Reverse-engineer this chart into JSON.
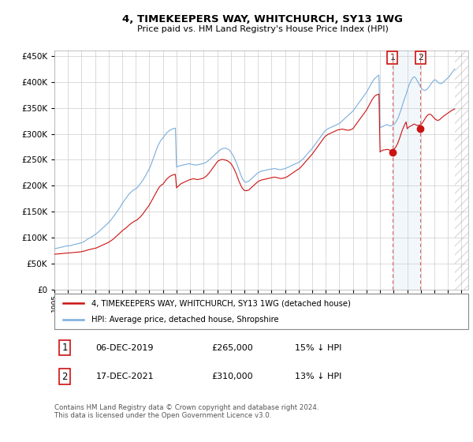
{
  "title": "4, TIMEKEEPERS WAY, WHITCHURCH, SY13 1WG",
  "subtitle": "Price paid vs. HM Land Registry's House Price Index (HPI)",
  "ytick_values": [
    0,
    50000,
    100000,
    150000,
    200000,
    250000,
    300000,
    350000,
    400000,
    450000
  ],
  "ylim": [
    0,
    460000
  ],
  "xlim_start": 1995.0,
  "xlim_end": 2025.5,
  "hpi_color": "#7aaddc",
  "price_color": "#cc1111",
  "sale1_x": 2019.92,
  "sale1_price": 265000,
  "sale2_x": 2021.96,
  "sale2_price": 310000,
  "span_color": "#cce0f0",
  "vline_color": "#dd6666",
  "legend_line1": "4, TIMEKEEPERS WAY, WHITCHURCH, SY13 1WG (detached house)",
  "legend_line2": "HPI: Average price, detached house, Shropshire",
  "footer": "Contains HM Land Registry data © Crown copyright and database right 2024.\nThis data is licensed under the Open Government Licence v3.0.",
  "table_row1": [
    "1",
    "06-DEC-2019",
    "£265,000",
    "15% ↓ HPI"
  ],
  "table_row2": [
    "2",
    "17-DEC-2021",
    "£310,000",
    "13% ↓ HPI"
  ],
  "hpi_x": [
    1995.0,
    1995.083,
    1995.167,
    1995.25,
    1995.333,
    1995.417,
    1995.5,
    1995.583,
    1995.667,
    1995.75,
    1995.833,
    1995.917,
    1996.0,
    1996.083,
    1996.167,
    1996.25,
    1996.333,
    1996.417,
    1996.5,
    1996.583,
    1996.667,
    1996.75,
    1996.833,
    1996.917,
    1997.0,
    1997.083,
    1997.167,
    1997.25,
    1997.333,
    1997.417,
    1997.5,
    1997.583,
    1997.667,
    1997.75,
    1997.833,
    1997.917,
    1998.0,
    1998.083,
    1998.167,
    1998.25,
    1998.333,
    1998.417,
    1998.5,
    1998.583,
    1998.667,
    1998.75,
    1998.833,
    1998.917,
    1999.0,
    1999.083,
    1999.167,
    1999.25,
    1999.333,
    1999.417,
    1999.5,
    1999.583,
    1999.667,
    1999.75,
    1999.833,
    1999.917,
    2000.0,
    2000.083,
    2000.167,
    2000.25,
    2000.333,
    2000.417,
    2000.5,
    2000.583,
    2000.667,
    2000.75,
    2000.833,
    2000.917,
    2001.0,
    2001.083,
    2001.167,
    2001.25,
    2001.333,
    2001.417,
    2001.5,
    2001.583,
    2001.667,
    2001.75,
    2001.833,
    2001.917,
    2002.0,
    2002.083,
    2002.167,
    2002.25,
    2002.333,
    2002.417,
    2002.5,
    2002.583,
    2002.667,
    2002.75,
    2002.833,
    2002.917,
    2003.0,
    2003.083,
    2003.167,
    2003.25,
    2003.333,
    2003.417,
    2003.5,
    2003.583,
    2003.667,
    2003.75,
    2003.833,
    2003.917,
    2004.0,
    2004.083,
    2004.167,
    2004.25,
    2004.333,
    2004.417,
    2004.5,
    2004.583,
    2004.667,
    2004.75,
    2004.833,
    2004.917,
    2005.0,
    2005.083,
    2005.167,
    2005.25,
    2005.333,
    2005.417,
    2005.5,
    2005.583,
    2005.667,
    2005.75,
    2005.833,
    2005.917,
    2006.0,
    2006.083,
    2006.167,
    2006.25,
    2006.333,
    2006.417,
    2006.5,
    2006.583,
    2006.667,
    2006.75,
    2006.833,
    2006.917,
    2007.0,
    2007.083,
    2007.167,
    2007.25,
    2007.333,
    2007.417,
    2007.5,
    2007.583,
    2007.667,
    2007.75,
    2007.833,
    2007.917,
    2008.0,
    2008.083,
    2008.167,
    2008.25,
    2008.333,
    2008.417,
    2008.5,
    2008.583,
    2008.667,
    2008.75,
    2008.833,
    2008.917,
    2009.0,
    2009.083,
    2009.167,
    2009.25,
    2009.333,
    2009.417,
    2009.5,
    2009.583,
    2009.667,
    2009.75,
    2009.833,
    2009.917,
    2010.0,
    2010.083,
    2010.167,
    2010.25,
    2010.333,
    2010.417,
    2010.5,
    2010.583,
    2010.667,
    2010.75,
    2010.833,
    2010.917,
    2011.0,
    2011.083,
    2011.167,
    2011.25,
    2011.333,
    2011.417,
    2011.5,
    2011.583,
    2011.667,
    2011.75,
    2011.833,
    2011.917,
    2012.0,
    2012.083,
    2012.167,
    2012.25,
    2012.333,
    2012.417,
    2012.5,
    2012.583,
    2012.667,
    2012.75,
    2012.833,
    2012.917,
    2013.0,
    2013.083,
    2013.167,
    2013.25,
    2013.333,
    2013.417,
    2013.5,
    2013.583,
    2013.667,
    2013.75,
    2013.833,
    2013.917,
    2014.0,
    2014.083,
    2014.167,
    2014.25,
    2014.333,
    2014.417,
    2014.5,
    2014.583,
    2014.667,
    2014.75,
    2014.833,
    2014.917,
    2015.0,
    2015.083,
    2015.167,
    2015.25,
    2015.333,
    2015.417,
    2015.5,
    2015.583,
    2015.667,
    2015.75,
    2015.833,
    2015.917,
    2016.0,
    2016.083,
    2016.167,
    2016.25,
    2016.333,
    2016.417,
    2016.5,
    2016.583,
    2016.667,
    2016.75,
    2016.833,
    2016.917,
    2017.0,
    2017.083,
    2017.167,
    2017.25,
    2017.333,
    2017.417,
    2017.5,
    2017.583,
    2017.667,
    2017.75,
    2017.833,
    2017.917,
    2018.0,
    2018.083,
    2018.167,
    2018.25,
    2018.333,
    2018.417,
    2018.5,
    2018.583,
    2018.667,
    2018.75,
    2018.833,
    2018.917,
    2019.0,
    2019.083,
    2019.167,
    2019.25,
    2019.333,
    2019.417,
    2019.5,
    2019.583,
    2019.667,
    2019.75,
    2019.833,
    2019.917,
    2020.0,
    2020.083,
    2020.167,
    2020.25,
    2020.333,
    2020.417,
    2020.5,
    2020.583,
    2020.667,
    2020.75,
    2020.833,
    2020.917,
    2021.0,
    2021.083,
    2021.167,
    2021.25,
    2021.333,
    2021.417,
    2021.5,
    2021.583,
    2021.667,
    2021.75,
    2021.833,
    2021.917,
    2022.0,
    2022.083,
    2022.167,
    2022.25,
    2022.333,
    2022.417,
    2022.5,
    2022.583,
    2022.667,
    2022.75,
    2022.833,
    2022.917,
    2023.0,
    2023.083,
    2023.167,
    2023.25,
    2023.333,
    2023.417,
    2023.5,
    2023.583,
    2023.667,
    2023.75,
    2023.833,
    2023.917,
    2024.0,
    2024.083,
    2024.167,
    2024.25,
    2024.333,
    2024.417,
    2024.5
  ],
  "hpi_y": [
    80000,
    79000,
    79500,
    80000,
    80500,
    81000,
    81500,
    82000,
    82500,
    83000,
    83500,
    84000,
    84500,
    84000,
    84500,
    85000,
    86000,
    86500,
    87000,
    87500,
    88000,
    88500,
    89000,
    89500,
    90000,
    91000,
    92000,
    93500,
    95000,
    96500,
    98000,
    99000,
    100000,
    101500,
    103000,
    104500,
    106000,
    107500,
    109000,
    111000,
    113000,
    115000,
    117000,
    119000,
    121000,
    123000,
    125000,
    127000,
    129000,
    131500,
    134000,
    137000,
    140000,
    143000,
    146000,
    149000,
    152000,
    155000,
    158000,
    162000,
    166000,
    169000,
    172000,
    175000,
    178000,
    181000,
    184000,
    186000,
    188000,
    190000,
    192000,
    193000,
    194000,
    196000,
    198000,
    201000,
    204000,
    207000,
    210000,
    213500,
    217000,
    221000,
    225000,
    229000,
    233000,
    238000,
    244000,
    250000,
    256000,
    262000,
    268000,
    274000,
    279000,
    283000,
    287000,
    290000,
    292000,
    295000,
    298000,
    301000,
    303000,
    305000,
    307000,
    308000,
    309000,
    310000,
    310500,
    311000,
    236000,
    237000,
    238000,
    238500,
    239000,
    239500,
    240000,
    240500,
    241000,
    241500,
    242000,
    242500,
    242000,
    241500,
    241000,
    240500,
    240000,
    240000,
    240000,
    240500,
    241000,
    241500,
    242000,
    242500,
    243000,
    244000,
    245000,
    246500,
    248000,
    250000,
    252000,
    254000,
    256000,
    258000,
    260000,
    262000,
    264000,
    266000,
    268000,
    270000,
    271000,
    271500,
    272000,
    272500,
    272000,
    271000,
    270000,
    268000,
    265000,
    262000,
    258000,
    254000,
    249000,
    244000,
    238000,
    232000,
    226000,
    220000,
    215000,
    211000,
    208000,
    207000,
    207000,
    208000,
    209000,
    211000,
    213000,
    215000,
    217000,
    219000,
    221000,
    223000,
    225000,
    226000,
    227000,
    228000,
    228500,
    229000,
    229500,
    230000,
    230500,
    231000,
    231500,
    232000,
    232000,
    232500,
    233000,
    233000,
    232500,
    232000,
    231500,
    231000,
    231000,
    231500,
    232000,
    232500,
    233000,
    234000,
    235000,
    236000,
    237000,
    238000,
    239000,
    240000,
    241000,
    242000,
    243000,
    244000,
    245000,
    246500,
    248000,
    250000,
    252000,
    254500,
    257000,
    259500,
    262000,
    264500,
    267000,
    269500,
    272000,
    275000,
    278000,
    281000,
    284000,
    287000,
    290000,
    293000,
    296000,
    299000,
    302000,
    305000,
    307000,
    308500,
    310000,
    311000,
    312000,
    313000,
    314000,
    315000,
    316000,
    317000,
    318000,
    319000,
    320000,
    322000,
    324000,
    326000,
    328000,
    330000,
    332000,
    334000,
    336000,
    338000,
    340000,
    342000,
    344000,
    347000,
    350000,
    353000,
    356000,
    359000,
    362000,
    365000,
    368000,
    371000,
    374000,
    377000,
    380000,
    384000,
    388000,
    392000,
    396000,
    400000,
    403000,
    406000,
    408000,
    410000,
    412000,
    413000,
    312000,
    313000,
    314000,
    315000,
    316000,
    317000,
    318000,
    317000,
    316000,
    315000,
    316000,
    317000,
    318000,
    320000,
    323000,
    327000,
    331000,
    337000,
    343000,
    350000,
    357000,
    364000,
    370000,
    376000,
    383000,
    390000,
    396000,
    401000,
    405000,
    408000,
    410000,
    409000,
    406000,
    402000,
    398000,
    394000,
    390000,
    387000,
    385000,
    384000,
    384000,
    385000,
    387000,
    390000,
    393000,
    396000,
    399000,
    402000,
    404000,
    404000,
    402000,
    400000,
    398000,
    397000,
    397000,
    398000,
    400000,
    402000,
    404000,
    406000,
    408000,
    410000,
    413000,
    416000,
    419000,
    422000,
    425000
  ],
  "price_x": [
    1995.0,
    1995.083,
    1995.167,
    1995.25,
    1995.333,
    1995.417,
    1995.5,
    1995.583,
    1995.667,
    1995.75,
    1995.833,
    1995.917,
    1996.0,
    1996.083,
    1996.167,
    1996.25,
    1996.333,
    1996.417,
    1996.5,
    1996.583,
    1996.667,
    1996.75,
    1996.833,
    1996.917,
    1997.0,
    1997.083,
    1997.167,
    1997.25,
    1997.333,
    1997.417,
    1997.5,
    1997.583,
    1997.667,
    1997.75,
    1997.833,
    1997.917,
    1998.0,
    1998.083,
    1998.167,
    1998.25,
    1998.333,
    1998.417,
    1998.5,
    1998.583,
    1998.667,
    1998.75,
    1998.833,
    1998.917,
    1999.0,
    1999.083,
    1999.167,
    1999.25,
    1999.333,
    1999.417,
    1999.5,
    1999.583,
    1999.667,
    1999.75,
    1999.833,
    1999.917,
    2000.0,
    2000.083,
    2000.167,
    2000.25,
    2000.333,
    2000.417,
    2000.5,
    2000.583,
    2000.667,
    2000.75,
    2000.833,
    2000.917,
    2001.0,
    2001.083,
    2001.167,
    2001.25,
    2001.333,
    2001.417,
    2001.5,
    2001.583,
    2001.667,
    2001.75,
    2001.833,
    2001.917,
    2002.0,
    2002.083,
    2002.167,
    2002.25,
    2002.333,
    2002.417,
    2002.5,
    2002.583,
    2002.667,
    2002.75,
    2002.833,
    2002.917,
    2003.0,
    2003.083,
    2003.167,
    2003.25,
    2003.333,
    2003.417,
    2003.5,
    2003.583,
    2003.667,
    2003.75,
    2003.833,
    2003.917,
    2004.0,
    2004.083,
    2004.167,
    2004.25,
    2004.333,
    2004.417,
    2004.5,
    2004.583,
    2004.667,
    2004.75,
    2004.833,
    2004.917,
    2005.0,
    2005.083,
    2005.167,
    2005.25,
    2005.333,
    2005.417,
    2005.5,
    2005.583,
    2005.667,
    2005.75,
    2005.833,
    2005.917,
    2006.0,
    2006.083,
    2006.167,
    2006.25,
    2006.333,
    2006.417,
    2006.5,
    2006.583,
    2006.667,
    2006.75,
    2006.833,
    2006.917,
    2007.0,
    2007.083,
    2007.167,
    2007.25,
    2007.333,
    2007.417,
    2007.5,
    2007.583,
    2007.667,
    2007.75,
    2007.833,
    2007.917,
    2008.0,
    2008.083,
    2008.167,
    2008.25,
    2008.333,
    2008.417,
    2008.5,
    2008.583,
    2008.667,
    2008.75,
    2008.833,
    2008.917,
    2009.0,
    2009.083,
    2009.167,
    2009.25,
    2009.333,
    2009.417,
    2009.5,
    2009.583,
    2009.667,
    2009.75,
    2009.833,
    2009.917,
    2010.0,
    2010.083,
    2010.167,
    2010.25,
    2010.333,
    2010.417,
    2010.5,
    2010.583,
    2010.667,
    2010.75,
    2010.833,
    2010.917,
    2011.0,
    2011.083,
    2011.167,
    2011.25,
    2011.333,
    2011.417,
    2011.5,
    2011.583,
    2011.667,
    2011.75,
    2011.833,
    2011.917,
    2012.0,
    2012.083,
    2012.167,
    2012.25,
    2012.333,
    2012.417,
    2012.5,
    2012.583,
    2012.667,
    2012.75,
    2012.833,
    2012.917,
    2013.0,
    2013.083,
    2013.167,
    2013.25,
    2013.333,
    2013.417,
    2013.5,
    2013.583,
    2013.667,
    2013.75,
    2013.833,
    2013.917,
    2014.0,
    2014.083,
    2014.167,
    2014.25,
    2014.333,
    2014.417,
    2014.5,
    2014.583,
    2014.667,
    2014.75,
    2014.833,
    2014.917,
    2015.0,
    2015.083,
    2015.167,
    2015.25,
    2015.333,
    2015.417,
    2015.5,
    2015.583,
    2015.667,
    2015.75,
    2015.833,
    2015.917,
    2016.0,
    2016.083,
    2016.167,
    2016.25,
    2016.333,
    2016.417,
    2016.5,
    2016.583,
    2016.667,
    2016.75,
    2016.833,
    2016.917,
    2017.0,
    2017.083,
    2017.167,
    2017.25,
    2017.333,
    2017.417,
    2017.5,
    2017.583,
    2017.667,
    2017.75,
    2017.833,
    2017.917,
    2018.0,
    2018.083,
    2018.167,
    2018.25,
    2018.333,
    2018.417,
    2018.5,
    2018.583,
    2018.667,
    2018.75,
    2018.833,
    2018.917,
    2019.0,
    2019.083,
    2019.167,
    2019.25,
    2019.333,
    2019.417,
    2019.5,
    2019.583,
    2019.667,
    2019.75,
    2019.833,
    2019.917,
    2020.0,
    2020.083,
    2020.167,
    2020.25,
    2020.333,
    2020.417,
    2020.5,
    2020.583,
    2020.667,
    2020.75,
    2020.833,
    2020.917,
    2021.0,
    2021.083,
    2021.167,
    2021.25,
    2021.333,
    2021.417,
    2021.5,
    2021.583,
    2021.667,
    2021.75,
    2021.833,
    2021.917,
    2022.0,
    2022.083,
    2022.167,
    2022.25,
    2022.333,
    2022.417,
    2022.5,
    2022.583,
    2022.667,
    2022.75,
    2022.833,
    2022.917,
    2023.0,
    2023.083,
    2023.167,
    2023.25,
    2023.333,
    2023.417,
    2023.5,
    2023.583,
    2023.667,
    2023.75,
    2023.833,
    2023.917,
    2024.0,
    2024.083,
    2024.167,
    2024.25,
    2024.333,
    2024.417,
    2024.5
  ],
  "price_y": [
    68000,
    68200,
    68400,
    68600,
    68800,
    69000,
    69200,
    69400,
    69600,
    69800,
    70000,
    70200,
    70500,
    70500,
    70700,
    70900,
    71100,
    71300,
    71500,
    71700,
    71900,
    72100,
    72300,
    72500,
    73000,
    73500,
    74000,
    74500,
    75200,
    75800,
    76500,
    77000,
    77500,
    78000,
    78500,
    79000,
    79500,
    80000,
    81000,
    82000,
    83000,
    84000,
    85000,
    86000,
    87000,
    88000,
    89000,
    90000,
    91000,
    92500,
    94000,
    95500,
    97000,
    99000,
    101000,
    103000,
    105000,
    107000,
    109000,
    111000,
    113000,
    115000,
    116500,
    118000,
    120000,
    122000,
    124000,
    126000,
    127500,
    129000,
    130500,
    132000,
    133000,
    134000,
    136000,
    138000,
    140000,
    142500,
    145000,
    148000,
    151000,
    154000,
    157000,
    160000,
    163000,
    167000,
    171000,
    175000,
    179000,
    183000,
    187000,
    191000,
    195000,
    198000,
    200000,
    202000,
    203000,
    206000,
    209000,
    212000,
    214000,
    216000,
    218000,
    219000,
    220000,
    221000,
    221500,
    222000,
    196000,
    198000,
    200000,
    202000,
    204000,
    205000,
    206000,
    207000,
    208000,
    209000,
    210000,
    211000,
    212000,
    212500,
    213000,
    213500,
    213000,
    212500,
    212000,
    212000,
    212500,
    213000,
    213500,
    214000,
    215000,
    216500,
    218000,
    220000,
    222500,
    225000,
    228000,
    231000,
    234000,
    237000,
    240000,
    243000,
    246000,
    248000,
    249000,
    250000,
    250500,
    250500,
    250000,
    249500,
    249000,
    248000,
    246500,
    245000,
    243000,
    240000,
    236000,
    232000,
    227000,
    222000,
    216000,
    210000,
    205000,
    200000,
    196000,
    193000,
    191000,
    190500,
    190500,
    191000,
    192000,
    194000,
    196000,
    198000,
    200000,
    202000,
    204000,
    206000,
    208000,
    209000,
    210000,
    211000,
    211500,
    212000,
    212500,
    213000,
    213500,
    214000,
    214500,
    215000,
    215500,
    216000,
    216500,
    216500,
    216000,
    215500,
    215000,
    214500,
    214000,
    214000,
    214500,
    215000,
    215500,
    216500,
    217500,
    219000,
    220500,
    222000,
    223500,
    225000,
    226500,
    228000,
    229500,
    231000,
    232000,
    234000,
    236000,
    238500,
    241000,
    243500,
    246000,
    248500,
    251000,
    253500,
    256000,
    258500,
    261000,
    264000,
    267000,
    270000,
    273000,
    276000,
    279000,
    282000,
    285000,
    288000,
    291000,
    294000,
    296000,
    297500,
    299000,
    300000,
    301000,
    302000,
    303000,
    304000,
    305000,
    306000,
    307000,
    308000,
    308000,
    308500,
    309000,
    309000,
    308500,
    308000,
    307500,
    307000,
    307000,
    307500,
    308000,
    309000,
    310000,
    313000,
    316000,
    319000,
    322000,
    325000,
    328000,
    331000,
    334000,
    337000,
    340000,
    343000,
    346000,
    350000,
    354000,
    358000,
    362000,
    366000,
    369000,
    372000,
    374000,
    375000,
    376000,
    376500,
    265000,
    267000,
    268000,
    269000,
    269000,
    269500,
    270000,
    270000,
    269000,
    268000,
    268500,
    269000,
    270000,
    272000,
    275000,
    279000,
    284000,
    290000,
    296000,
    303000,
    309000,
    314000,
    319000,
    323000,
    310000,
    312000,
    314000,
    315000,
    316000,
    317500,
    319000,
    318000,
    317000,
    316000,
    316500,
    317000,
    318000,
    320000,
    323000,
    326500,
    330000,
    333500,
    336000,
    337500,
    338000,
    337000,
    335000,
    332500,
    330000,
    328000,
    326500,
    326000,
    326500,
    328000,
    330000,
    332000,
    334000,
    335500,
    337000,
    338500,
    340000,
    341500,
    343000,
    344500,
    346000,
    347000,
    348000
  ]
}
